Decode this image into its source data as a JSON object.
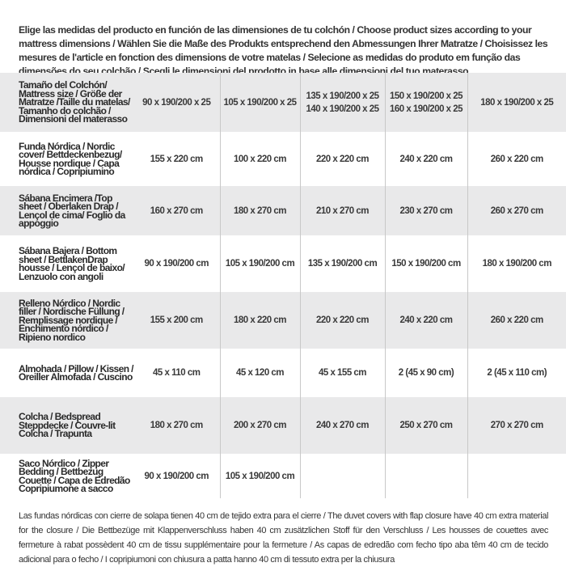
{
  "intro": "Elige las medidas del producto en función de las dimensiones de tu colchón / Choose product sizes according to your mattress dimensions / Wählen Sie die Maße des Produkts entsprechend den Abmessungen Ihrer Matratze / Choisissez les mesures de l'article en fonction des dimensions de votre matelas / Selecione as medidas do produto em função das dimensões do seu colchão / Scegli le dimensioni del prodotto in base alle dimensioni del tuo materasso",
  "table": {
    "header": {
      "label": "Tamaño del Colchón/ Mattress size / Größe der Matratze /Taille du matelas/ Tamanho do colchão / Dimensioni del materasso",
      "sizes": [
        [
          "90 x 190/200 x 25"
        ],
        [
          "105 x 190/200 x 25"
        ],
        [
          "135 x 190/200 x 25",
          "140 x 190/200 x 25"
        ],
        [
          "150 x 190/200 x 25",
          "160 x 190/200 x 25"
        ],
        [
          "180 x 190/200 x 25"
        ]
      ]
    },
    "rows": [
      {
        "label": "Funda Nórdica / Nordic cover/ Bettdeckenbezug/ Housse nordique / Capa nórdica / Copripiumino",
        "values": [
          "155 x 220 cm",
          "100 x 220 cm",
          "220 x 220 cm",
          "240 x 220 cm",
          "260 x 220 cm"
        ]
      },
      {
        "label": "Sábana Encimera /Top sheet / Oberlaken Drap / Lençol de cima/ Foglio da appoggio",
        "values": [
          "160 x 270 cm",
          "180 x 270 cm",
          "210 x 270 cm",
          "230 x 270 cm",
          "260 x 270 cm"
        ]
      },
      {
        "label": "Sábana Bajera / Bottom sheet / BettlakenDrap housse / Lençol de baixo/ Lenzuolo con angoli",
        "values": [
          "90 x 190/200 cm",
          "105 x 190/200 cm",
          "135 x 190/200 cm",
          "150 x 190/200 cm",
          "180 x 190/200 cm"
        ]
      },
      {
        "label": "Relleno Nórdico / Nordic filler / Nordische Füllung / Remplissage nordique / Enchimento nórdico / Ripieno nordico",
        "values": [
          "155 x 200 cm",
          "180 x 220 cm",
          "220 x 220 cm",
          "240 x 220 cm",
          "260 x 220 cm"
        ]
      },
      {
        "label": "Almohada / Pillow / Kissen / Oreiller Almofada / Cuscino",
        "values": [
          "45 x 110 cm",
          "45 x 120 cm",
          "45 x 155 cm",
          "2 (45 x 90 cm)",
          "2 (45 x 110 cm)"
        ]
      },
      {
        "label": "Colcha / Bedspread Steppdecke / Couvre-lit Colcha / Trapunta",
        "values": [
          "180 x 270 cm",
          "200 x 270 cm",
          "240 x 270 cm",
          "250 x 270 cm",
          "270 x 270 cm"
        ]
      },
      {
        "label": "Saco Nórdico / Zipper Bedding / Bettbezug Couette / Capa de Edredão Copripiumone a sacco",
        "values": [
          "90 x 190/200 cm",
          "105 x 190/200 cm",
          "",
          "",
          ""
        ]
      }
    ]
  },
  "footnote": "Las fundas nórdicas con cierre de solapa tienen 40 cm de tejido extra para el cierre / The duvet covers with flap closure have 40 cm extra material for the closure / Die Bettbezüge mit Klappenverschluss haben 40 cm zusätzlichen Stoff für den Verschluss / Les housses de couettes avec fermeture à rabat possèdent 40 cm de tissu supplémentaire pour la fermeture / As capas de edredão com fecho tipo aba têm 40 cm de tecido adicional para o fecho / I copripiumoni con chiusura a patta hanno 40 cm di tessuto extra per la chiusura"
}
